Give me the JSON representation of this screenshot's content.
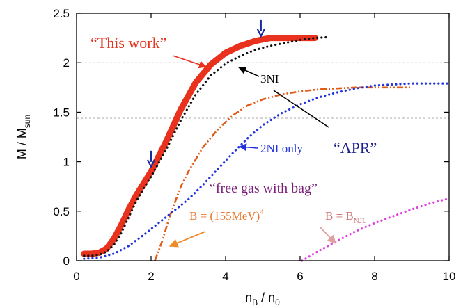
{
  "chart_data": {
    "type": "line",
    "xlabel": {
      "main": "n",
      "sub1": "B",
      "mid": " / n",
      "sub2": "0"
    },
    "ylabel": {
      "main": "M / M",
      "sub": "sun"
    },
    "xlim": [
      0,
      10
    ],
    "ylim": [
      0,
      2.5
    ],
    "xticks": [
      0,
      2,
      4,
      6,
      8,
      10
    ],
    "yticks": [
      0,
      0.5,
      1,
      1.5,
      2,
      2.5
    ],
    "xtick_labels": [
      "0",
      "2",
      "4",
      "6",
      "8",
      "10"
    ],
    "ytick_labels": [
      "0",
      "0.5",
      "1",
      "1.5",
      "2",
      "2.5"
    ],
    "reference_lines": [
      {
        "y": 2.0,
        "style": "dashed",
        "color": "#aaaaaa"
      },
      {
        "y": 1.44,
        "style": "dashed",
        "color": "#aaaaaa"
      }
    ],
    "series": [
      {
        "color": "#e8321e",
        "style": "solid-thick",
        "x": [
          0.2,
          0.4,
          0.6,
          0.8,
          1.0,
          1.2,
          1.4,
          1.6,
          1.8,
          2.0,
          2.4,
          2.8,
          3.2,
          3.6,
          4.0,
          4.4,
          4.8,
          5.2,
          5.6,
          6.0,
          6.4
        ],
        "y": [
          0.07,
          0.07,
          0.08,
          0.12,
          0.22,
          0.36,
          0.52,
          0.66,
          0.78,
          0.9,
          1.2,
          1.53,
          1.8,
          1.98,
          2.1,
          2.17,
          2.22,
          2.25,
          2.25,
          2.25,
          2.25
        ]
      },
      {
        "color": "#111111",
        "style": "dotted",
        "x": [
          0.2,
          0.4,
          0.6,
          0.8,
          1.0,
          1.2,
          1.4,
          1.6,
          1.8,
          2.0,
          2.4,
          2.8,
          3.2,
          3.6,
          4.0,
          4.4,
          4.8,
          5.2,
          5.6,
          6.0,
          6.4,
          6.8
        ],
        "y": [
          0.05,
          0.05,
          0.06,
          0.09,
          0.16,
          0.28,
          0.44,
          0.6,
          0.73,
          0.85,
          1.12,
          1.42,
          1.68,
          1.87,
          1.99,
          2.07,
          2.13,
          2.17,
          2.2,
          2.23,
          2.25,
          2.26
        ]
      },
      {
        "color": "#e05a18",
        "style": "dash-dot",
        "x": [
          2.1,
          2.3,
          2.5,
          2.8,
          3.0,
          3.4,
          3.8,
          4.2,
          4.6,
          5.0,
          5.5,
          6.0,
          6.5,
          7.0,
          7.5,
          8.0,
          8.5,
          9.0
        ],
        "y": [
          0.0,
          0.2,
          0.45,
          0.75,
          0.9,
          1.15,
          1.33,
          1.47,
          1.57,
          1.63,
          1.68,
          1.71,
          1.73,
          1.74,
          1.75,
          1.75,
          1.75,
          1.75
        ]
      },
      {
        "color": "#2233dd",
        "style": "dotted",
        "x": [
          0.2,
          0.6,
          1.0,
          1.4,
          1.8,
          2.2,
          2.6,
          3.0,
          3.4,
          3.8,
          4.2,
          4.6,
          5.0,
          5.5,
          6.0,
          6.5,
          7.0,
          7.5,
          8.0,
          8.5,
          9.0,
          9.5,
          10.0
        ],
        "y": [
          0.02,
          0.03,
          0.07,
          0.15,
          0.26,
          0.38,
          0.5,
          0.62,
          0.77,
          0.93,
          1.09,
          1.24,
          1.37,
          1.49,
          1.58,
          1.65,
          1.7,
          1.74,
          1.77,
          1.78,
          1.79,
          1.79,
          1.79
        ]
      },
      {
        "color": "#e040e0",
        "style": "dotted",
        "x": [
          6.05,
          6.5,
          7.0,
          7.5,
          8.0,
          8.5,
          9.0,
          9.5,
          10.0
        ],
        "y": [
          0.0,
          0.1,
          0.2,
          0.3,
          0.38,
          0.45,
          0.52,
          0.58,
          0.63
        ]
      }
    ],
    "annotations": {
      "this_work": {
        "text": "“This work”",
        "color": "#e8321e"
      },
      "three_ni": {
        "text": "3NI",
        "color": "#000000"
      },
      "two_ni_only": {
        "text": "2NI only",
        "color": "#2233dd"
      },
      "apr": {
        "text": "“APR”",
        "color": "#1a1f8c"
      },
      "free_gas": {
        "text": "“free gas with bag”",
        "color": "#7a1f7a"
      },
      "bag_155": {
        "main": "B = (155MeV)",
        "sup": "4",
        "color": "#e8762a"
      },
      "bag_njl": {
        "main": "B = B",
        "sub": "NJL",
        "color": "#c97070"
      }
    },
    "markers": [
      {
        "kind": "down-arrow",
        "x": 2.0,
        "y": 0.9,
        "color": "#1a2aa0"
      },
      {
        "kind": "down-arrow",
        "x": 4.95,
        "y": 2.22,
        "color": "#1a2aa0"
      }
    ]
  }
}
